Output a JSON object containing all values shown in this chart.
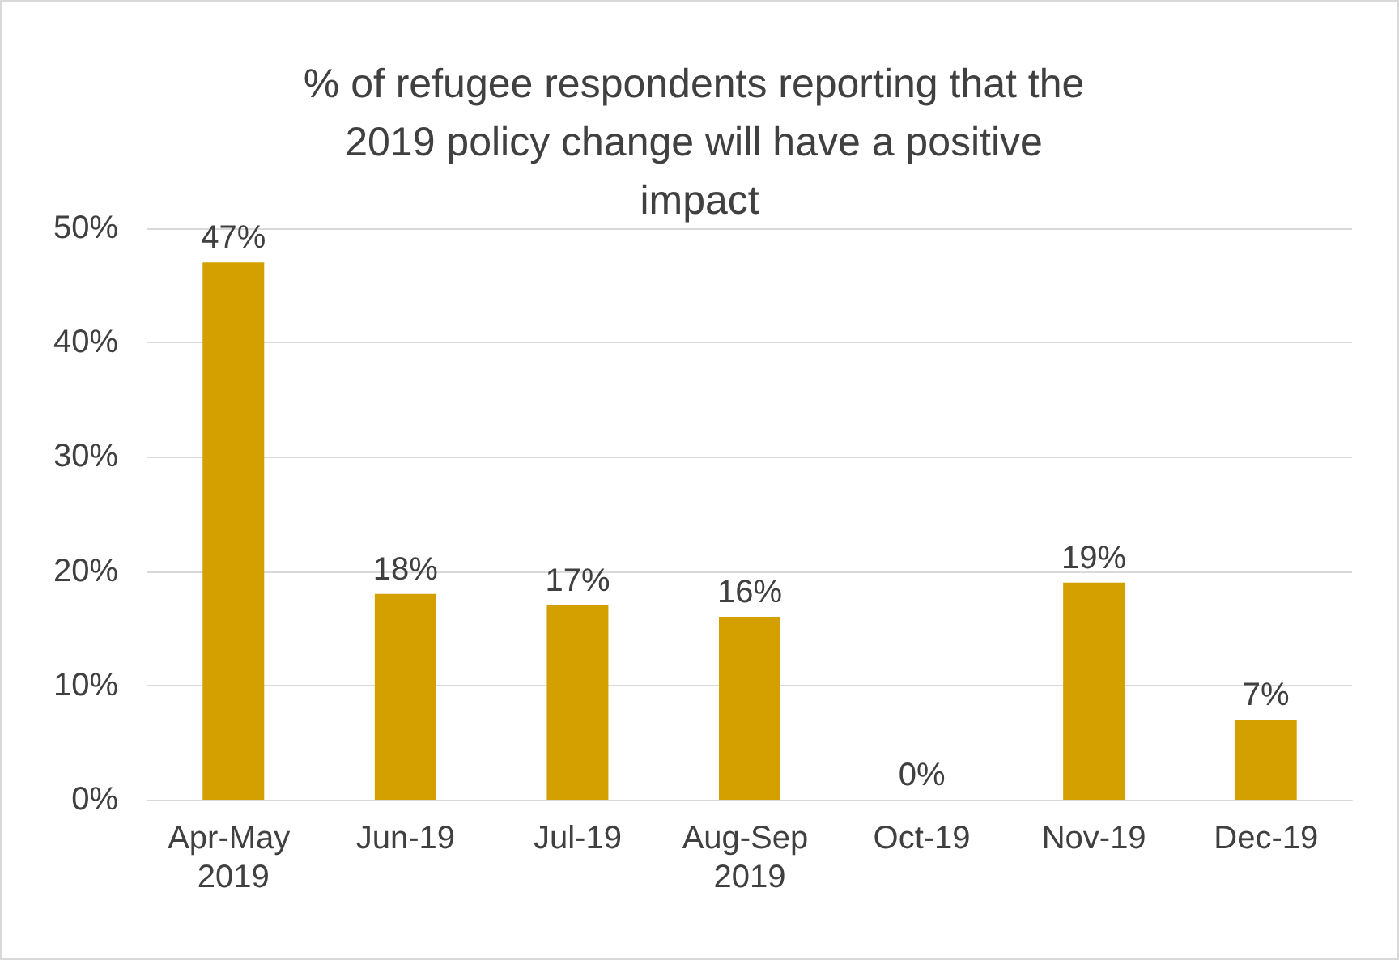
{
  "chart_data": {
    "type": "bar",
    "title": "% of refugee respondents reporting that the 2019 policy change will have a positive impact",
    "categories": [
      "Apr-May 2019",
      "Jun-19",
      "Jul-19",
      "Aug-Sep 2019",
      "Oct-19",
      "Nov-19",
      "Dec-19"
    ],
    "values": [
      47,
      18,
      17,
      16,
      0,
      19,
      7
    ],
    "value_labels": [
      "47%",
      "18%",
      "17%",
      "16%",
      "0%",
      "19%",
      "7%"
    ],
    "color": "#d4a000",
    "ylim": [
      0,
      50
    ],
    "yticks": [
      {
        "value": 0,
        "label": "0%"
      },
      {
        "value": 10,
        "label": "10%"
      },
      {
        "value": 20,
        "label": "20%"
      },
      {
        "value": 30,
        "label": "30%"
      },
      {
        "value": 40,
        "label": "40%"
      },
      {
        "value": 50,
        "label": "50%"
      }
    ],
    "grid": "y"
  }
}
